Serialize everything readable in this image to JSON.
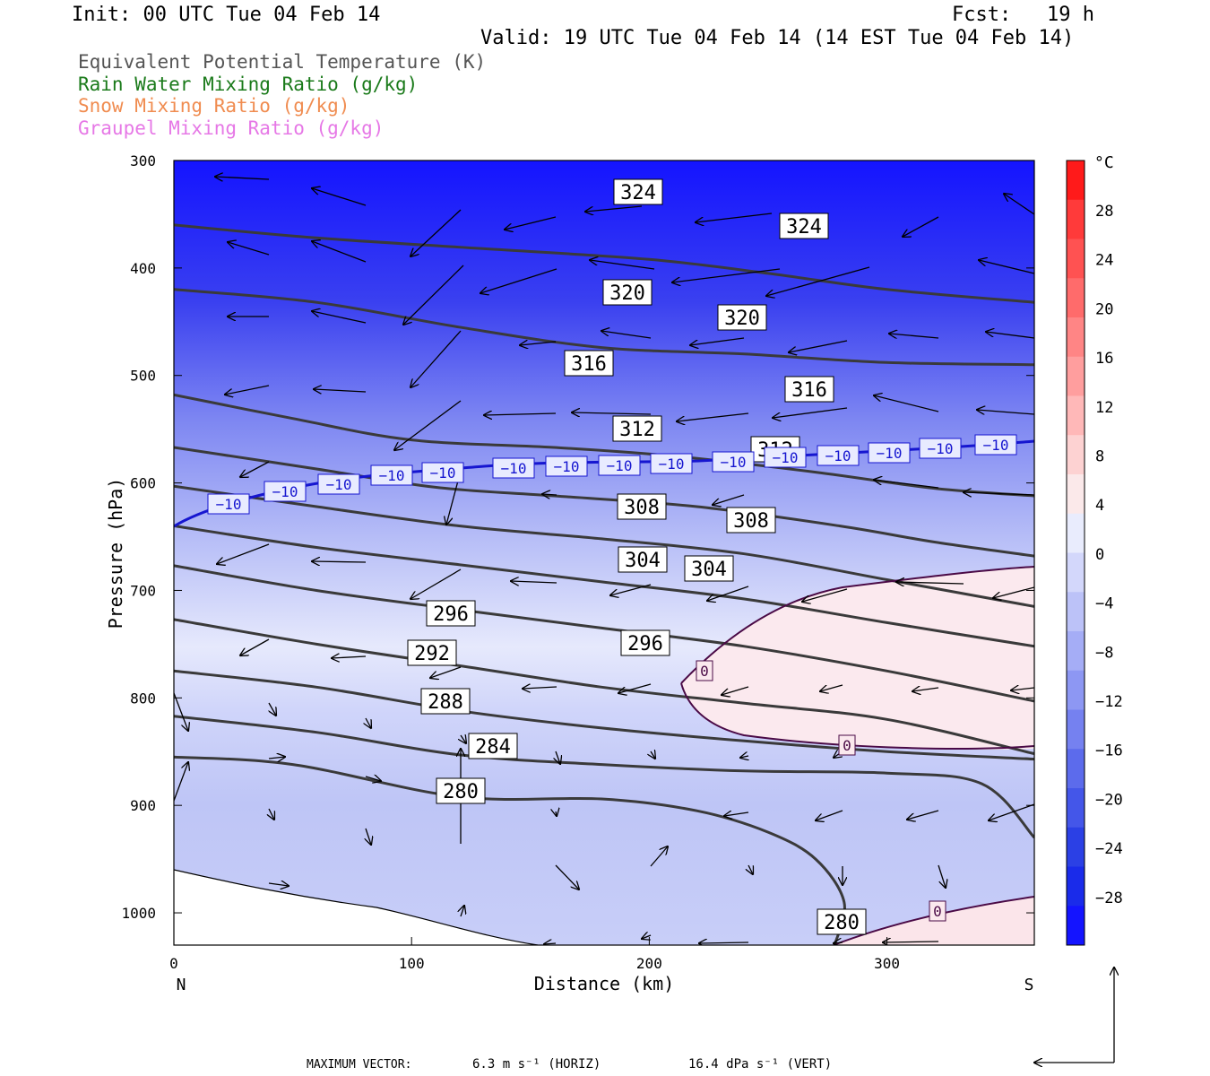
{
  "header": {
    "init": "Init: 00 UTC Tue 04 Feb 14",
    "fcst": "Fcst:   19 h",
    "valid": "Valid: 19 UTC Tue 04 Feb 14 (14 EST Tue 04 Feb 14)"
  },
  "fields": [
    {
      "label": "Equivalent Potential Temperature (K)",
      "color": "#555555"
    },
    {
      "label": "Rain Water Mixing Ratio (g/kg)",
      "color": "#1a7a1a"
    },
    {
      "label": "Snow Mixing Ratio (g/kg)",
      "color": "#f08c50"
    },
    {
      "label": "Graupel Mixing Ratio (g/kg)",
      "color": "#e678e6"
    }
  ],
  "chart_data": {
    "type": "cross-section",
    "xlabel": "Distance (km)",
    "ylabel": "Pressure (hPa)",
    "xlim": [
      0,
      362
    ],
    "ylim": [
      1030,
      300
    ],
    "x_ticks": [
      0,
      100,
      200,
      300
    ],
    "y_ticks": [
      300,
      400,
      500,
      600,
      700,
      800,
      900,
      1000
    ],
    "x_end_labels": {
      "left": "N",
      "right": "S"
    },
    "theta_e_contours": [
      {
        "value": 324,
        "points": [
          [
            0,
            360
          ],
          [
            60,
            372
          ],
          [
            130,
            382
          ],
          [
            200,
            392
          ],
          [
            250,
            405
          ],
          [
            300,
            420
          ],
          [
            362,
            432
          ]
        ]
      },
      {
        "value": 320,
        "points": [
          [
            0,
            420
          ],
          [
            60,
            432
          ],
          [
            120,
            455
          ],
          [
            180,
            474
          ],
          [
            240,
            480
          ],
          [
            300,
            488
          ],
          [
            362,
            490
          ]
        ]
      },
      {
        "value": 316,
        "points": [
          [
            0,
            518
          ],
          [
            50,
            540
          ],
          [
            100,
            560
          ],
          [
            160,
            567
          ],
          [
            210,
            575
          ],
          [
            270,
            590
          ],
          [
            320,
            605
          ],
          [
            362,
            612
          ]
        ]
      },
      {
        "value": 312,
        "points": [
          [
            0,
            567
          ],
          [
            60,
            587
          ],
          [
            110,
            604
          ],
          [
            160,
            612
          ],
          [
            220,
            622
          ],
          [
            280,
            640
          ],
          [
            320,
            655
          ],
          [
            362,
            668
          ]
        ]
      },
      {
        "value": 308,
        "points": [
          [
            0,
            603
          ],
          [
            60,
            622
          ],
          [
            120,
            640
          ],
          [
            180,
            652
          ],
          [
            240,
            666
          ],
          [
            300,
            690
          ],
          [
            362,
            715
          ]
        ]
      },
      {
        "value": 304,
        "points": [
          [
            0,
            640
          ],
          [
            60,
            660
          ],
          [
            120,
            676
          ],
          [
            180,
            692
          ],
          [
            240,
            708
          ],
          [
            300,
            730
          ],
          [
            362,
            752
          ]
        ]
      },
      {
        "value": 296,
        "points": [
          [
            0,
            677
          ],
          [
            60,
            700
          ],
          [
            120,
            718
          ],
          [
            180,
            735
          ],
          [
            240,
            752
          ],
          [
            300,
            775
          ],
          [
            362,
            803
          ]
        ]
      },
      {
        "value": 292,
        "points": [
          [
            0,
            727
          ],
          [
            60,
            750
          ],
          [
            120,
            770
          ],
          [
            180,
            790
          ],
          [
            240,
            805
          ],
          [
            300,
            820
          ],
          [
            362,
            852
          ]
        ]
      },
      {
        "value": 288,
        "points": [
          [
            0,
            775
          ],
          [
            60,
            790
          ],
          [
            120,
            812
          ],
          [
            180,
            828
          ],
          [
            240,
            840
          ],
          [
            300,
            850
          ],
          [
            362,
            857
          ]
        ]
      },
      {
        "value": 284,
        "points": [
          [
            0,
            817
          ],
          [
            60,
            832
          ],
          [
            120,
            853
          ],
          [
            180,
            862
          ],
          [
            240,
            868
          ],
          [
            300,
            870
          ],
          [
            340,
            880
          ],
          [
            362,
            930
          ]
        ]
      },
      {
        "value": 280,
        "points": [
          [
            0,
            855
          ],
          [
            50,
            862
          ],
          [
            120,
            892
          ],
          [
            180,
            894
          ],
          [
            220,
            905
          ],
          [
            250,
            925
          ],
          [
            270,
            950
          ],
          [
            282,
            990
          ],
          [
            278,
            1030
          ]
        ]
      }
    ],
    "temperature_colorbar": {
      "unit": "°C",
      "labels": [
        28,
        24,
        20,
        16,
        12,
        8,
        4,
        0,
        -4,
        -8,
        -12,
        -16,
        -20,
        -24,
        -28
      ]
    },
    "isotherm_labels": [
      {
        "value": -10,
        "count": 17
      },
      {
        "value": 0,
        "count": 3
      }
    ],
    "max_vector": {
      "label": "MAXIMUM VECTOR:",
      "horiz": "6.3 m s⁻¹ (HORIZ)",
      "vert": "16.4 dPa s⁻¹ (VERT)"
    }
  }
}
